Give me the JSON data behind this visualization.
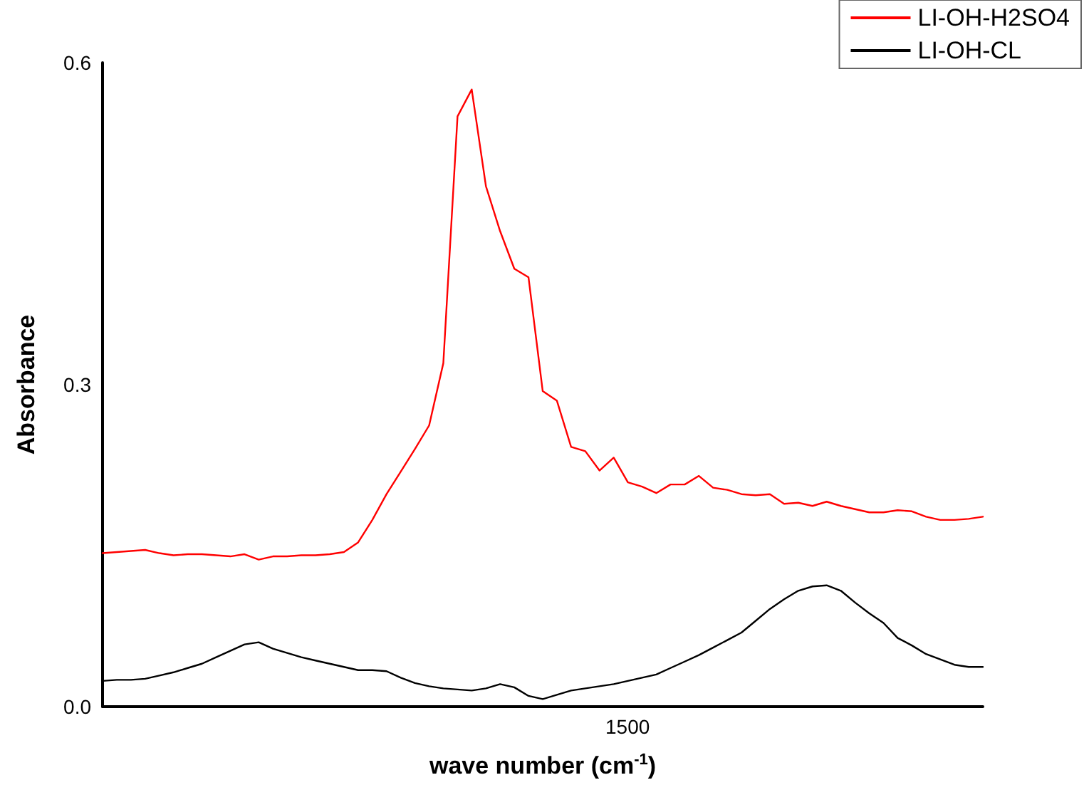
{
  "chart_data": {
    "type": "line",
    "xlabel": "wave number (cm$^{-1}$)",
    "ylabel": "Absorbance",
    "categories": [
      null,
      null,
      null,
      null,
      null,
      null,
      null,
      null,
      null,
      null,
      null,
      null,
      null,
      null,
      null,
      null,
      null,
      null,
      null,
      null,
      null,
      null,
      null,
      null,
      null,
      null,
      null,
      null,
      null,
      null,
      null,
      null,
      null,
      null,
      null,
      null,
      null,
      null,
      null,
      null,
      null,
      null,
      null,
      null,
      null,
      null,
      null,
      null,
      null,
      null,
      null,
      null,
      null,
      null,
      null,
      null,
      null,
      null,
      null,
      null,
      null,
      null,
      null
    ],
    "annotations": [
      "1500"
    ],
    "ylim": [
      0,
      0.6
    ],
    "yticks": [
      {
        "value": 0,
        "label": "0.0"
      },
      {
        "value": 0.3,
        "label": "0.3"
      },
      {
        "value": 0.6,
        "label": "0.6"
      }
    ],
    "grid": false,
    "legend": "top right",
    "marker": "none",
    "line_style": "solid",
    "series": [
      {
        "name": "LI-OH-H2SO4",
        "color": "#ff0000",
        "values": [
          0.143,
          0.144,
          0.145,
          0.146,
          0.143,
          0.141,
          0.142,
          0.142,
          0.141,
          0.14,
          0.142,
          0.137,
          0.14,
          0.14,
          0.141,
          0.141,
          0.142,
          0.144,
          0.153,
          0.174,
          0.198,
          0.219,
          0.24,
          0.262,
          0.32,
          0.55,
          0.575,
          0.485,
          0.443,
          0.408,
          0.4,
          0.294,
          0.285,
          0.242,
          0.238,
          0.22,
          0.232,
          0.209,
          0.205,
          0.199,
          0.207,
          0.207,
          0.215,
          0.204,
          0.202,
          0.198,
          0.197,
          0.198,
          0.189,
          0.19,
          0.187,
          0.191,
          0.187,
          0.184,
          0.181,
          0.181,
          0.183,
          0.182,
          0.177,
          0.174,
          0.174,
          0.175,
          0.177
        ]
      },
      {
        "name": "LI-OH-CL",
        "color": "#000000",
        "values": [
          0.024,
          0.025,
          0.025,
          0.026,
          0.029,
          0.032,
          0.036,
          0.04,
          0.046,
          0.052,
          0.058,
          0.06,
          0.054,
          0.05,
          0.046,
          0.043,
          0.04,
          0.037,
          0.034,
          0.034,
          0.033,
          0.027,
          0.022,
          0.019,
          0.017,
          0.016,
          0.015,
          0.017,
          0.021,
          0.018,
          0.01,
          0.007,
          0.011,
          0.015,
          0.017,
          0.019,
          0.021,
          0.024,
          0.027,
          0.03,
          0.036,
          0.042,
          0.048,
          0.055,
          0.062,
          0.069,
          0.08,
          0.091,
          0.1,
          0.108,
          0.112,
          0.113,
          0.108,
          0.097,
          0.087,
          0.078,
          0.064,
          0.057,
          0.049,
          0.044,
          0.039,
          0.037,
          0.037
        ]
      }
    ]
  }
}
